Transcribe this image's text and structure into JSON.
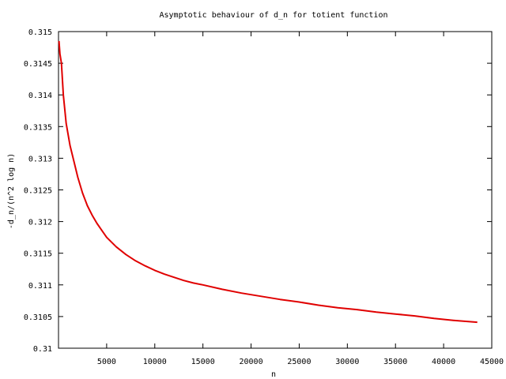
{
  "chart_data": {
    "type": "line",
    "title": "Asymptotic behaviour of d_n for totient function",
    "xlabel": "n",
    "ylabel": "-d_n/(n^2 log n)",
    "xlim": [
      0,
      45000
    ],
    "ylim": [
      0.31,
      0.315
    ],
    "xticks": [
      {
        "value": 5000,
        "label": "5000"
      },
      {
        "value": 10000,
        "label": "10000"
      },
      {
        "value": 15000,
        "label": "15000"
      },
      {
        "value": 20000,
        "label": "20000"
      },
      {
        "value": 25000,
        "label": "25000"
      },
      {
        "value": 30000,
        "label": "30000"
      },
      {
        "value": 35000,
        "label": "35000"
      },
      {
        "value": 40000,
        "label": "40000"
      },
      {
        "value": 45000,
        "label": "45000"
      }
    ],
    "yticks": [
      {
        "value": 0.31,
        "label": "0.31"
      },
      {
        "value": 0.3105,
        "label": "0.3105"
      },
      {
        "value": 0.311,
        "label": "0.311"
      },
      {
        "value": 0.3115,
        "label": "0.3115"
      },
      {
        "value": 0.312,
        "label": "0.312"
      },
      {
        "value": 0.3125,
        "label": "0.3125"
      },
      {
        "value": 0.313,
        "label": "0.313"
      },
      {
        "value": 0.3135,
        "label": "0.3135"
      },
      {
        "value": 0.314,
        "label": "0.314"
      },
      {
        "value": 0.3145,
        "label": "0.3145"
      },
      {
        "value": 0.315,
        "label": "0.315"
      }
    ],
    "grid": false,
    "legend": "none",
    "series": [
      {
        "color": "#e00000",
        "x": [
          50,
          150,
          300,
          500,
          800,
          1200,
          1600,
          2000,
          2500,
          3000,
          3500,
          4000,
          5000,
          6000,
          7000,
          8000,
          9000,
          10000,
          11000,
          12000,
          13000,
          14000,
          15000,
          17000,
          19000,
          21000,
          23000,
          25000,
          27000,
          29000,
          31000,
          33000,
          35000,
          37000,
          39000,
          41000,
          43500
        ],
        "y": [
          0.31485,
          0.31465,
          0.3145,
          0.314,
          0.31355,
          0.3132,
          0.31295,
          0.3127,
          0.31245,
          0.31225,
          0.3121,
          0.31197,
          0.31175,
          0.3116,
          0.31148,
          0.31138,
          0.3113,
          0.31123,
          0.31117,
          0.31112,
          0.31107,
          0.31103,
          0.311,
          0.31093,
          0.31087,
          0.31082,
          0.31077,
          0.31073,
          0.31068,
          0.31064,
          0.31061,
          0.31057,
          0.31054,
          0.31051,
          0.31047,
          0.31044,
          0.31041
        ]
      }
    ]
  }
}
